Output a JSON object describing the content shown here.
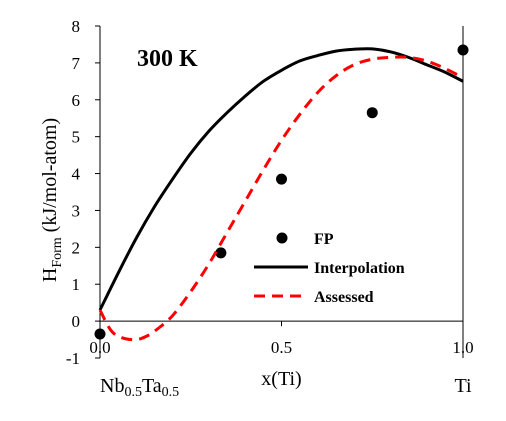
{
  "chart_data": {
    "type": "line",
    "annotation": "300 K",
    "ylabel": {
      "main": "H",
      "sub": "Form",
      "rest": " (kJ/mol-atom)"
    },
    "xlabel": "x(Ti)",
    "composition_left": {
      "parts": [
        {
          "t": "Nb",
          "sub": false
        },
        {
          "t": "0.5",
          "sub": true
        },
        {
          "t": "Ta",
          "sub": false
        },
        {
          "t": "0.5",
          "sub": true
        }
      ]
    },
    "composition_right": "Ti",
    "xlim": [
      0,
      1
    ],
    "ylim": [
      -1,
      8
    ],
    "xticks": [
      "0.0",
      "0.5",
      "1.0"
    ],
    "yticks": [
      "-1",
      "0",
      "1",
      "2",
      "3",
      "4",
      "5",
      "6",
      "7",
      "8"
    ],
    "series": [
      {
        "name": "FP",
        "style": "points",
        "color": "#000000",
        "x": [
          0.0,
          0.333,
          0.5,
          0.75,
          1.0
        ],
        "y": [
          -0.35,
          1.85,
          3.85,
          5.65,
          7.35
        ]
      },
      {
        "name": "Interpolation",
        "style": "solid",
        "color": "#000000",
        "x": [
          0,
          0.05,
          0.1,
          0.15,
          0.2,
          0.25,
          0.3,
          0.35,
          0.4,
          0.45,
          0.5,
          0.55,
          0.6,
          0.65,
          0.7,
          0.75,
          0.8,
          0.85,
          0.9,
          0.95,
          1.0
        ],
        "y": [
          0.3,
          1.3,
          2.25,
          3.1,
          3.85,
          4.55,
          5.15,
          5.65,
          6.1,
          6.5,
          6.8,
          7.05,
          7.2,
          7.32,
          7.37,
          7.38,
          7.3,
          7.15,
          6.95,
          6.75,
          6.5
        ]
      },
      {
        "name": "Assessed",
        "style": "dashed",
        "color": "#ff0000",
        "x": [
          0,
          0.03,
          0.06,
          0.1,
          0.13,
          0.16,
          0.2,
          0.25,
          0.3,
          0.35,
          0.4,
          0.45,
          0.5,
          0.55,
          0.6,
          0.65,
          0.7,
          0.75,
          0.8,
          0.85,
          0.9,
          0.95,
          1.0
        ],
        "y": [
          0.3,
          -0.25,
          -0.45,
          -0.5,
          -0.4,
          -0.2,
          0.15,
          0.8,
          1.55,
          2.4,
          3.25,
          4.1,
          4.9,
          5.6,
          6.2,
          6.65,
          6.95,
          7.1,
          7.15,
          7.15,
          7.05,
          6.85,
          6.6
        ]
      }
    ],
    "legend": {
      "position": "bottom-right"
    },
    "grid": false
  }
}
